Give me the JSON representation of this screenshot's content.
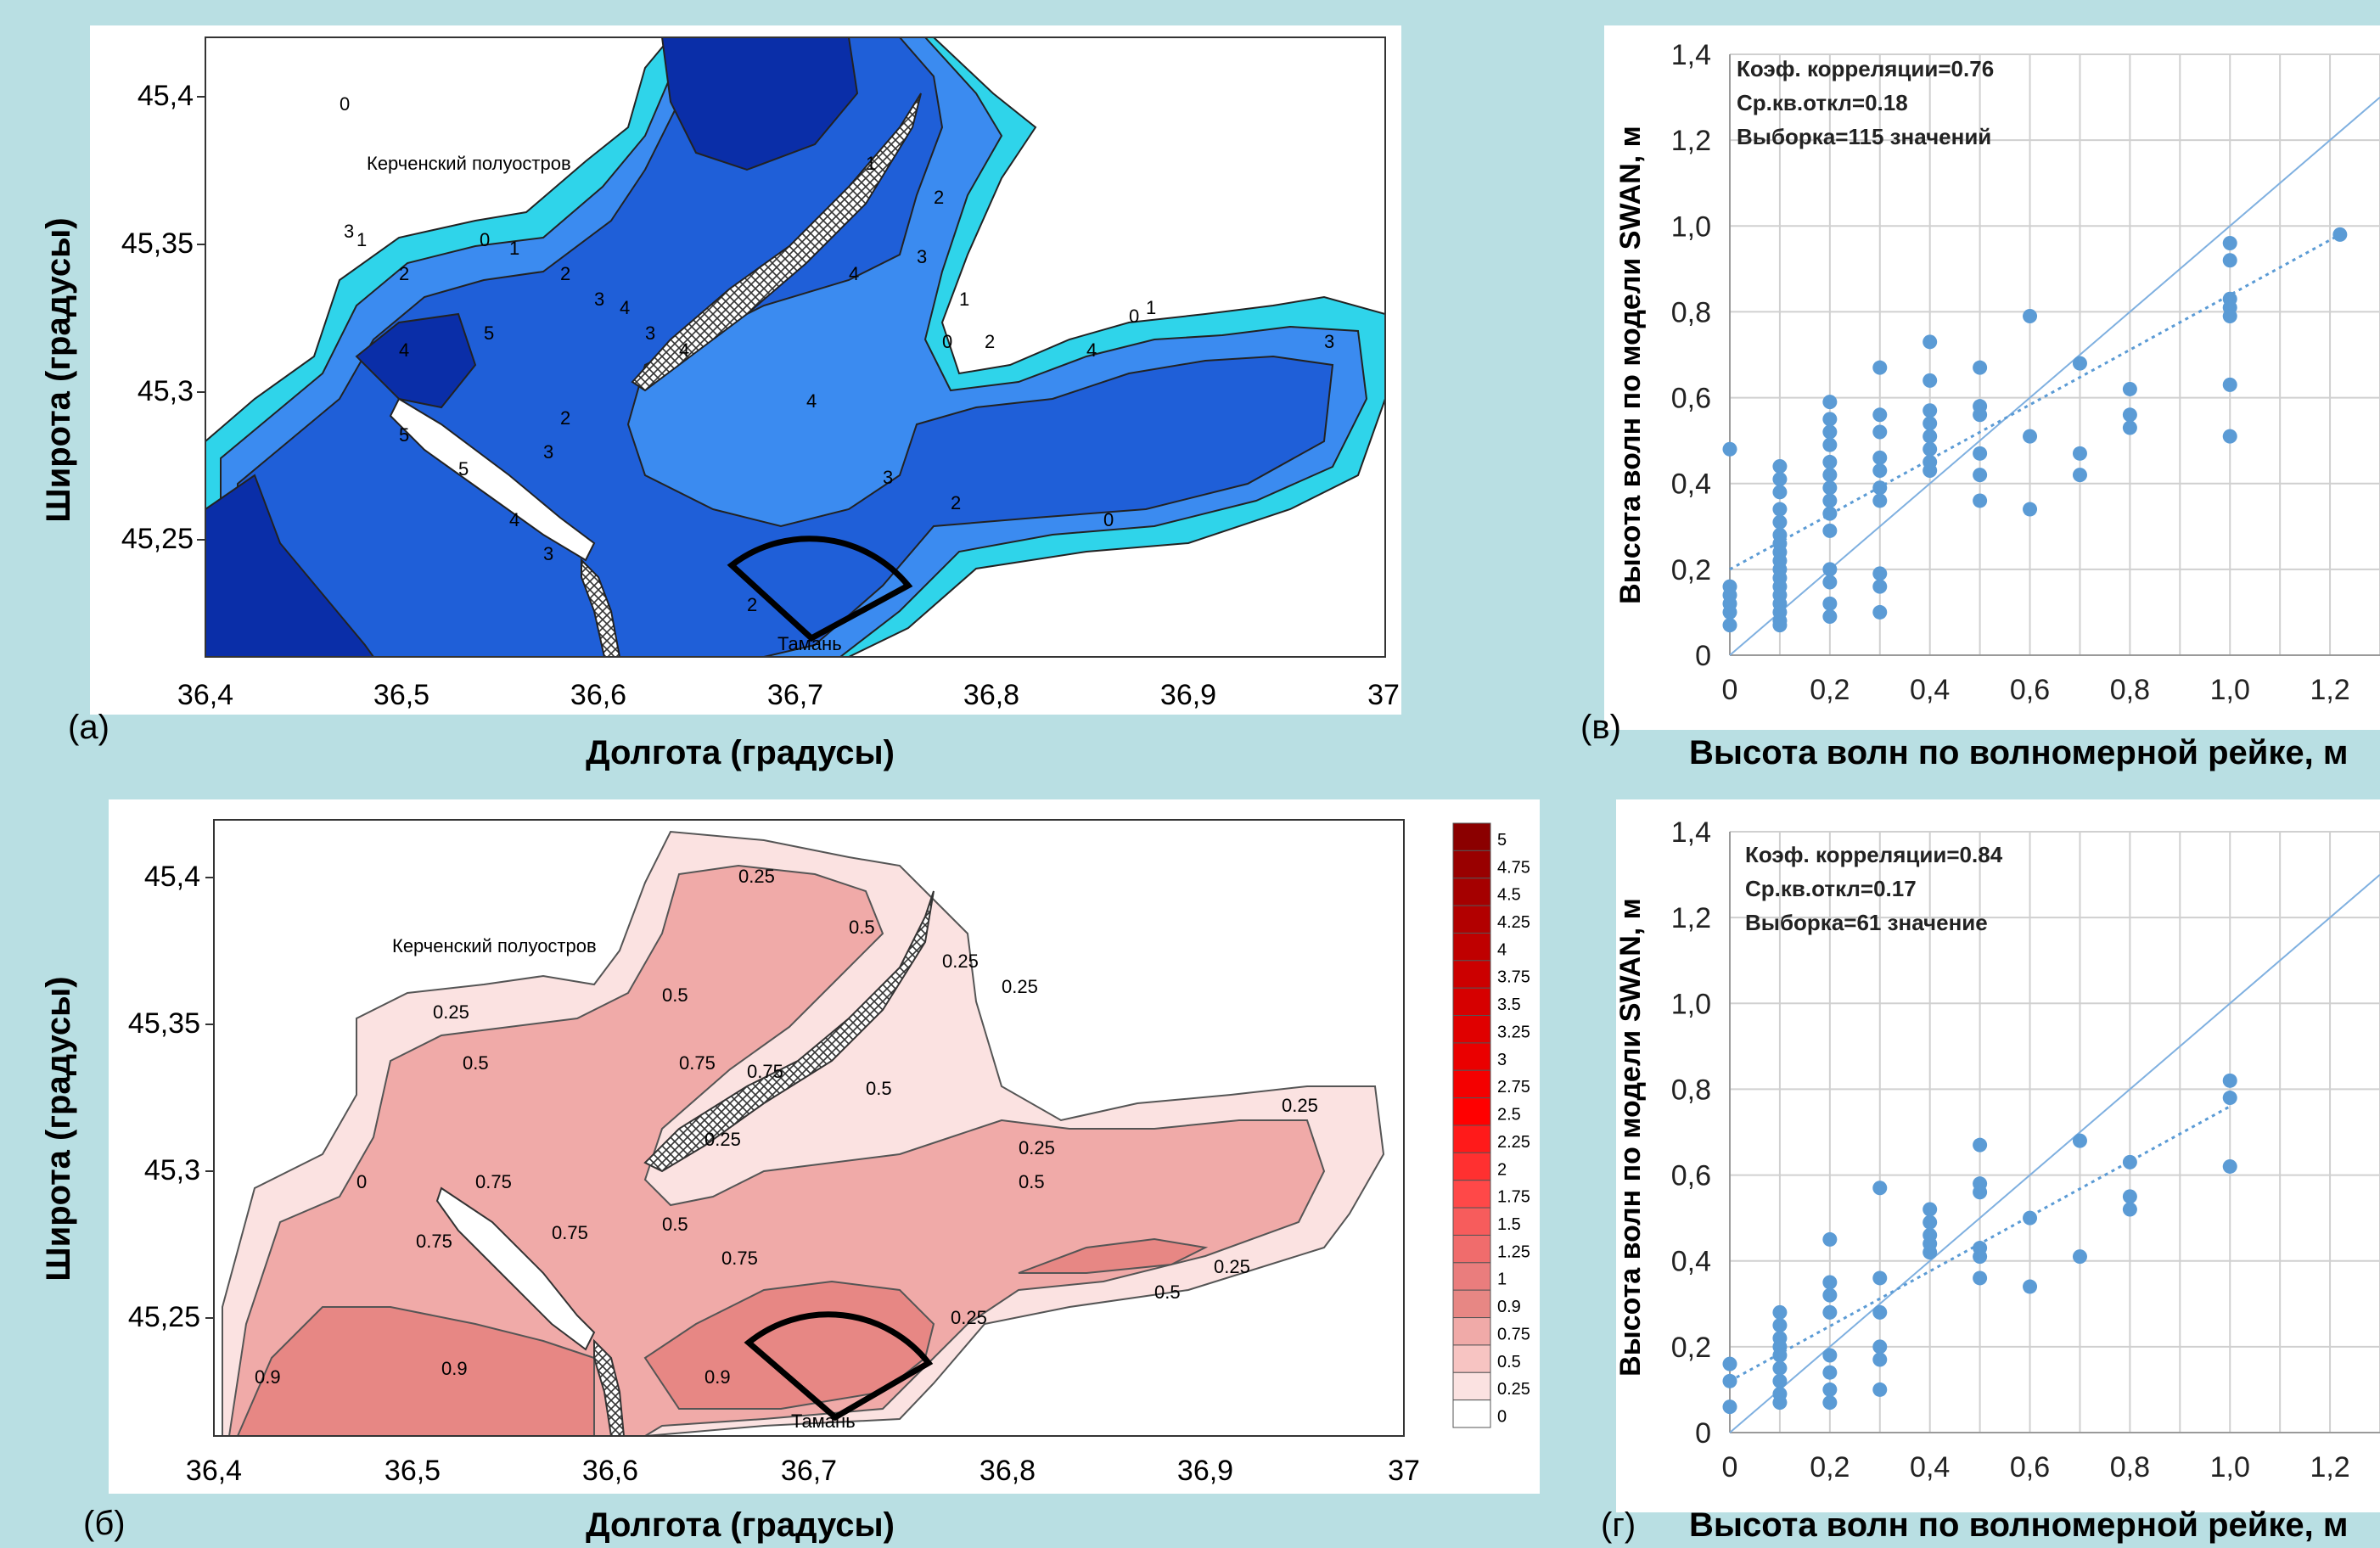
{
  "colors": {
    "background": "#b9dfe3",
    "deep": "#0a2ea8",
    "mid": "#1f5fd8",
    "shallow": "#3b8bf0",
    "coast": "#2fd4ea",
    "land": "#ffffff",
    "wave_low": "#f7d9d9",
    "wave_mid": "#f0aaa8",
    "wave_high": "#e78784",
    "scatter_point": "#5b9bd5",
    "sector": "#000000"
  },
  "maps": {
    "xlabel": "Долгота (градусы)",
    "ylabel": "Широта (градусы)",
    "x_ticks": [
      "36,4",
      "36,5",
      "36,6",
      "36,7",
      "36,8",
      "36,9",
      "37"
    ],
    "y_ticks": [
      "45,4",
      "45,35",
      "45,3",
      "45,25"
    ],
    "label_peninsula": "Керченский полуостров",
    "label_town": "Тамань"
  },
  "map_a": {
    "panel_label": "(a)",
    "contour_labels": [
      "0",
      "1",
      "2",
      "3",
      "4",
      "5",
      "0",
      "1",
      "2",
      "3",
      "4",
      "5",
      "1",
      "2",
      "3",
      "4",
      "0",
      "1",
      "3",
      "4",
      "2",
      "3",
      "0",
      "1",
      "2",
      "4",
      "3",
      "4",
      "3",
      "2",
      "0",
      "5",
      "4",
      "3",
      "2"
    ]
  },
  "map_b": {
    "panel_label": "(б)",
    "contour_labels": [
      "0.25",
      "0.5",
      "0.25",
      "0.5",
      "0.25",
      "0.25",
      "0.5",
      "0.75",
      "0.25",
      "0.5",
      "0.75",
      "0.75",
      "0.9",
      "0.75",
      "0.9",
      "0.75",
      "0.5",
      "0.25",
      "0.25",
      "0.5",
      "0.75",
      "0.9",
      "0.25",
      "0.25",
      "0.5",
      "0"
    ],
    "colorbar_levels": [
      "5",
      "4.75",
      "4.5",
      "4.25",
      "4",
      "3.75",
      "3.5",
      "3.25",
      "3",
      "2.75",
      "2.5",
      "2.25",
      "2",
      "1.75",
      "1.5",
      "1.25",
      "1",
      "0.9",
      "0.75",
      "0.5",
      "0.25",
      "0"
    ],
    "colorbar_colors": [
      "#8b0000",
      "#990000",
      "#a50000",
      "#b20000",
      "#bf0000",
      "#cc0000",
      "#d60000",
      "#e00000",
      "#ea0000",
      "#f40000",
      "#ff0000",
      "#ff1a1a",
      "#ff3030",
      "#ff4848",
      "#f75c5c",
      "#f06c6c",
      "#ea7d7d",
      "#e78784",
      "#f0aaa8",
      "#f7c4c2",
      "#fbe2e1",
      "#ffffff"
    ]
  },
  "chart_data": [
    {
      "type": "scatter",
      "panel_label": "(в)",
      "xlabel": "Высота волн по волномерной рейке, м",
      "ylabel": "Высота волн по модели SWAN, м",
      "xlim": [
        0,
        1.3
      ],
      "ylim": [
        0,
        1.4
      ],
      "x_ticks": [
        "0",
        "0,2",
        "0,4",
        "0,6",
        "0,8",
        "1,0",
        "1,2"
      ],
      "y_ticks": [
        "0",
        "0,2",
        "0,4",
        "0,6",
        "0,8",
        "1,0",
        "1,2",
        "1,4"
      ],
      "annotations": [
        "Коэф. корреляции=0.76",
        "Ср.кв.откл=0.18",
        "Выборка=115 значений"
      ],
      "fit_line": {
        "x": [
          0,
          1.22
        ],
        "y": [
          0.2,
          0.98
        ]
      },
      "identity_line": true,
      "points": [
        [
          0,
          0.48
        ],
        [
          0,
          0.16
        ],
        [
          0,
          0.14
        ],
        [
          0,
          0.12
        ],
        [
          0,
          0.1
        ],
        [
          0,
          0.07
        ],
        [
          0.1,
          0.44
        ],
        [
          0.1,
          0.41
        ],
        [
          0.1,
          0.38
        ],
        [
          0.1,
          0.34
        ],
        [
          0.1,
          0.31
        ],
        [
          0.1,
          0.28
        ],
        [
          0.1,
          0.26
        ],
        [
          0.1,
          0.24
        ],
        [
          0.1,
          0.22
        ],
        [
          0.1,
          0.2
        ],
        [
          0.1,
          0.18
        ],
        [
          0.1,
          0.16
        ],
        [
          0.1,
          0.14
        ],
        [
          0.1,
          0.12
        ],
        [
          0.1,
          0.1
        ],
        [
          0.1,
          0.08
        ],
        [
          0.1,
          0.07
        ],
        [
          0.2,
          0.59
        ],
        [
          0.2,
          0.55
        ],
        [
          0.2,
          0.52
        ],
        [
          0.2,
          0.49
        ],
        [
          0.2,
          0.45
        ],
        [
          0.2,
          0.42
        ],
        [
          0.2,
          0.39
        ],
        [
          0.2,
          0.36
        ],
        [
          0.2,
          0.33
        ],
        [
          0.2,
          0.29
        ],
        [
          0.2,
          0.2
        ],
        [
          0.2,
          0.17
        ],
        [
          0.2,
          0.12
        ],
        [
          0.2,
          0.09
        ],
        [
          0.3,
          0.67
        ],
        [
          0.3,
          0.56
        ],
        [
          0.3,
          0.52
        ],
        [
          0.3,
          0.46
        ],
        [
          0.3,
          0.43
        ],
        [
          0.3,
          0.39
        ],
        [
          0.3,
          0.36
        ],
        [
          0.3,
          0.19
        ],
        [
          0.3,
          0.16
        ],
        [
          0.3,
          0.1
        ],
        [
          0.4,
          0.73
        ],
        [
          0.4,
          0.64
        ],
        [
          0.4,
          0.57
        ],
        [
          0.4,
          0.54
        ],
        [
          0.4,
          0.51
        ],
        [
          0.4,
          0.48
        ],
        [
          0.4,
          0.45
        ],
        [
          0.4,
          0.43
        ],
        [
          0.5,
          0.67
        ],
        [
          0.5,
          0.58
        ],
        [
          0.5,
          0.56
        ],
        [
          0.5,
          0.47
        ],
        [
          0.5,
          0.42
        ],
        [
          0.5,
          0.36
        ],
        [
          0.6,
          0.79
        ],
        [
          0.6,
          0.51
        ],
        [
          0.6,
          0.34
        ],
        [
          0.7,
          0.68
        ],
        [
          0.7,
          0.47
        ],
        [
          0.7,
          0.42
        ],
        [
          0.8,
          0.62
        ],
        [
          0.8,
          0.56
        ],
        [
          0.8,
          0.53
        ],
        [
          1.0,
          0.96
        ],
        [
          1.0,
          0.92
        ],
        [
          1.0,
          0.83
        ],
        [
          1.0,
          0.81
        ],
        [
          1.0,
          0.79
        ],
        [
          1.0,
          0.63
        ],
        [
          1.0,
          0.51
        ],
        [
          1.22,
          0.98
        ]
      ]
    },
    {
      "type": "scatter",
      "panel_label": "(г)",
      "xlabel": "Высота волн по волномерной рейке, м",
      "ylabel": "Высота волн по модели SWAN, м",
      "xlim": [
        0,
        1.3
      ],
      "ylim": [
        0,
        1.4
      ],
      "x_ticks": [
        "0",
        "0,2",
        "0,4",
        "0,6",
        "0,8",
        "1,0",
        "1,2"
      ],
      "y_ticks": [
        "0",
        "0,2",
        "0,4",
        "0,6",
        "0,8",
        "1,0",
        "1,2",
        "1,4"
      ],
      "annotations": [
        "Коэф. корреляции=0.84",
        "Ср.кв.откл=0.17",
        "Выборка=61 значение"
      ],
      "fit_line": {
        "x": [
          0,
          1.0
        ],
        "y": [
          0.12,
          0.76
        ]
      },
      "identity_line": true,
      "points": [
        [
          0,
          0.16
        ],
        [
          0,
          0.12
        ],
        [
          0,
          0.06
        ],
        [
          0.1,
          0.28
        ],
        [
          0.1,
          0.25
        ],
        [
          0.1,
          0.22
        ],
        [
          0.1,
          0.2
        ],
        [
          0.1,
          0.18
        ],
        [
          0.1,
          0.15
        ],
        [
          0.1,
          0.12
        ],
        [
          0.1,
          0.09
        ],
        [
          0.1,
          0.07
        ],
        [
          0.2,
          0.45
        ],
        [
          0.2,
          0.35
        ],
        [
          0.2,
          0.32
        ],
        [
          0.2,
          0.28
        ],
        [
          0.2,
          0.18
        ],
        [
          0.2,
          0.14
        ],
        [
          0.2,
          0.1
        ],
        [
          0.2,
          0.07
        ],
        [
          0.3,
          0.57
        ],
        [
          0.3,
          0.36
        ],
        [
          0.3,
          0.28
        ],
        [
          0.3,
          0.2
        ],
        [
          0.3,
          0.17
        ],
        [
          0.3,
          0.1
        ],
        [
          0.4,
          0.52
        ],
        [
          0.4,
          0.49
        ],
        [
          0.4,
          0.46
        ],
        [
          0.4,
          0.44
        ],
        [
          0.4,
          0.42
        ],
        [
          0.5,
          0.67
        ],
        [
          0.5,
          0.58
        ],
        [
          0.5,
          0.56
        ],
        [
          0.5,
          0.43
        ],
        [
          0.5,
          0.41
        ],
        [
          0.5,
          0.36
        ],
        [
          0.6,
          0.5
        ],
        [
          0.6,
          0.34
        ],
        [
          0.7,
          0.68
        ],
        [
          0.7,
          0.41
        ],
        [
          0.8,
          0.63
        ],
        [
          0.8,
          0.55
        ],
        [
          0.8,
          0.52
        ],
        [
          1.0,
          0.82
        ],
        [
          1.0,
          0.78
        ],
        [
          1.0,
          0.62
        ]
      ]
    }
  ]
}
